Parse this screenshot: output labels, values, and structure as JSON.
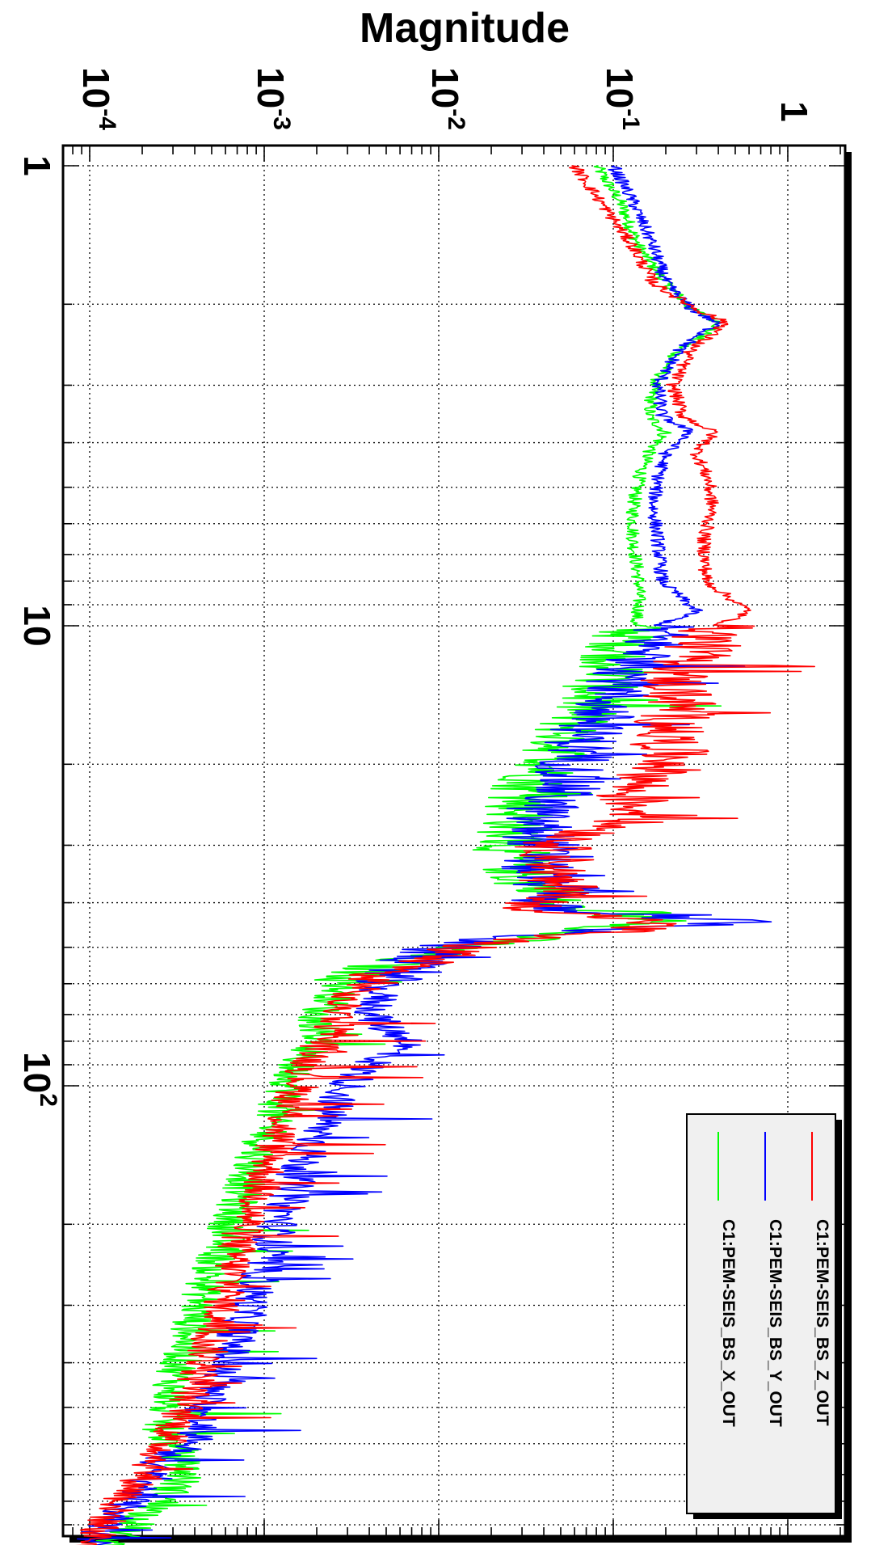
{
  "chart_data": {
    "type": "line",
    "ylabel": "Magnitude",
    "xlabel": "",
    "x_scale": "log",
    "y_scale": "log",
    "xlim": [
      1,
      1000
    ],
    "ylim": [
      7e-05,
      1.4
    ],
    "grid": true,
    "legend_position": "bottom-right",
    "orientation": "rotated 90 degrees clockwise",
    "x_tick_labels": [
      {
        "base": "1",
        "exp": ""
      },
      {
        "base": "10",
        "exp": ""
      },
      {
        "base": "10",
        "exp": "2"
      }
    ],
    "y_tick_labels": [
      {
        "base": "1",
        "exp": ""
      },
      {
        "base": "10",
        "exp": "-1"
      },
      {
        "base": "10",
        "exp": "-2"
      },
      {
        "base": "10",
        "exp": "-3"
      },
      {
        "base": "10",
        "exp": "-4"
      }
    ],
    "series": [
      {
        "name": "C1:PEM-SEIS_BS_Z_OUT",
        "color": "#ff0000",
        "x": [
          1,
          1.2,
          1.5,
          1.8,
          2.05,
          2.2,
          2.5,
          3.0,
          3.5,
          3.8,
          4.2,
          4.8,
          5.5,
          6.5,
          8,
          9.3,
          10,
          11.5,
          13,
          15,
          17,
          20,
          23,
          26,
          30,
          33,
          36,
          38,
          40,
          42,
          44,
          46,
          48,
          50,
          52,
          55,
          58,
          60,
          65,
          70,
          75,
          80,
          90,
          100,
          110,
          130,
          150,
          180,
          220,
          260,
          300,
          350,
          400,
          450,
          500,
          550,
          600,
          650,
          700,
          750,
          800,
          900,
          1000
        ],
        "y": [
          0.06,
          0.085,
          0.13,
          0.17,
          0.3,
          0.45,
          0.28,
          0.22,
          0.25,
          0.38,
          0.3,
          0.35,
          0.37,
          0.33,
          0.34,
          0.6,
          0.4,
          0.3,
          0.22,
          0.25,
          0.2,
          0.22,
          0.12,
          0.15,
          0.045,
          0.05,
          0.04,
          0.07,
          0.028,
          0.05,
          0.18,
          0.12,
          0.025,
          0.014,
          0.011,
          0.006,
          0.004,
          0.004,
          0.0027,
          0.0028,
          0.0025,
          0.0022,
          0.0018,
          0.0016,
          0.0014,
          0.0012,
          0.00105,
          0.0009,
          0.0007,
          0.00065,
          0.00058,
          0.0005,
          0.00045,
          0.0004,
          0.00035,
          0.00031,
          0.00027,
          0.00024,
          0.00021,
          0.00018,
          0.00015,
          0.00012,
          0.0001
        ]
      },
      {
        "name": "C1:PEM-SEIS_BS_Y_OUT",
        "color": "#0000ff",
        "x": [
          1,
          1.2,
          1.5,
          1.8,
          2.05,
          2.2,
          2.5,
          3.0,
          3.5,
          3.8,
          4.2,
          4.8,
          5.5,
          6.5,
          8,
          9.3,
          10,
          11.5,
          13,
          15,
          17,
          20,
          23,
          26,
          30,
          33,
          36,
          38,
          40,
          42,
          44,
          46,
          48,
          50,
          52,
          55,
          58,
          60,
          65,
          70,
          75,
          80,
          90,
          100,
          110,
          130,
          150,
          180,
          220,
          260,
          300,
          350,
          400,
          450,
          500,
          550,
          600,
          650,
          700,
          750,
          800,
          900,
          1000
        ],
        "y": [
          0.1,
          0.13,
          0.17,
          0.2,
          0.28,
          0.4,
          0.24,
          0.18,
          0.19,
          0.28,
          0.2,
          0.18,
          0.17,
          0.18,
          0.19,
          0.3,
          0.18,
          0.16,
          0.12,
          0.09,
          0.07,
          0.06,
          0.05,
          0.035,
          0.04,
          0.035,
          0.038,
          0.06,
          0.035,
          0.055,
          0.65,
          0.07,
          0.02,
          0.01,
          0.009,
          0.006,
          0.005,
          0.0045,
          0.0045,
          0.0042,
          0.005,
          0.007,
          0.004,
          0.003,
          0.0025,
          0.002,
          0.0016,
          0.00135,
          0.0011,
          0.00095,
          0.00082,
          0.0007,
          0.0006,
          0.0005,
          0.00045,
          0.00042,
          0.0004,
          0.00025,
          0.00022,
          0.0002,
          0.00017,
          0.00013,
          9e-05
        ]
      },
      {
        "name": "C1:PEM-SEIS_BS_X_OUT",
        "color": "#00ff00",
        "x": [
          1,
          1.2,
          1.5,
          1.8,
          2.05,
          2.2,
          2.5,
          3.0,
          3.5,
          3.8,
          4.2,
          4.8,
          5.5,
          6.5,
          8,
          9.3,
          10,
          11.5,
          13,
          15,
          17,
          20,
          23,
          26,
          30,
          33,
          36,
          38,
          40,
          42,
          44,
          46,
          48,
          50,
          52,
          55,
          58,
          60,
          65,
          70,
          75,
          80,
          90,
          100,
          110,
          130,
          150,
          180,
          220,
          260,
          300,
          350,
          400,
          450,
          500,
          550,
          600,
          650,
          700,
          750,
          800,
          900,
          1000
        ],
        "y": [
          0.08,
          0.11,
          0.14,
          0.2,
          0.28,
          0.42,
          0.24,
          0.17,
          0.16,
          0.2,
          0.16,
          0.14,
          0.13,
          0.13,
          0.14,
          0.14,
          0.13,
          0.11,
          0.09,
          0.07,
          0.055,
          0.045,
          0.03,
          0.03,
          0.025,
          0.028,
          0.03,
          0.05,
          0.04,
          0.07,
          0.25,
          0.06,
          0.03,
          0.012,
          0.008,
          0.0045,
          0.0035,
          0.0028,
          0.0025,
          0.002,
          0.0021,
          0.002,
          0.0015,
          0.0014,
          0.0012,
          0.001,
          0.00085,
          0.0007,
          0.00058,
          0.00048,
          0.00042,
          0.00037,
          0.00033,
          0.0003,
          0.00028,
          0.00026,
          0.00028,
          0.00033,
          0.00036,
          0.0003,
          0.00026,
          0.00018,
          0.00013
        ]
      }
    ]
  }
}
